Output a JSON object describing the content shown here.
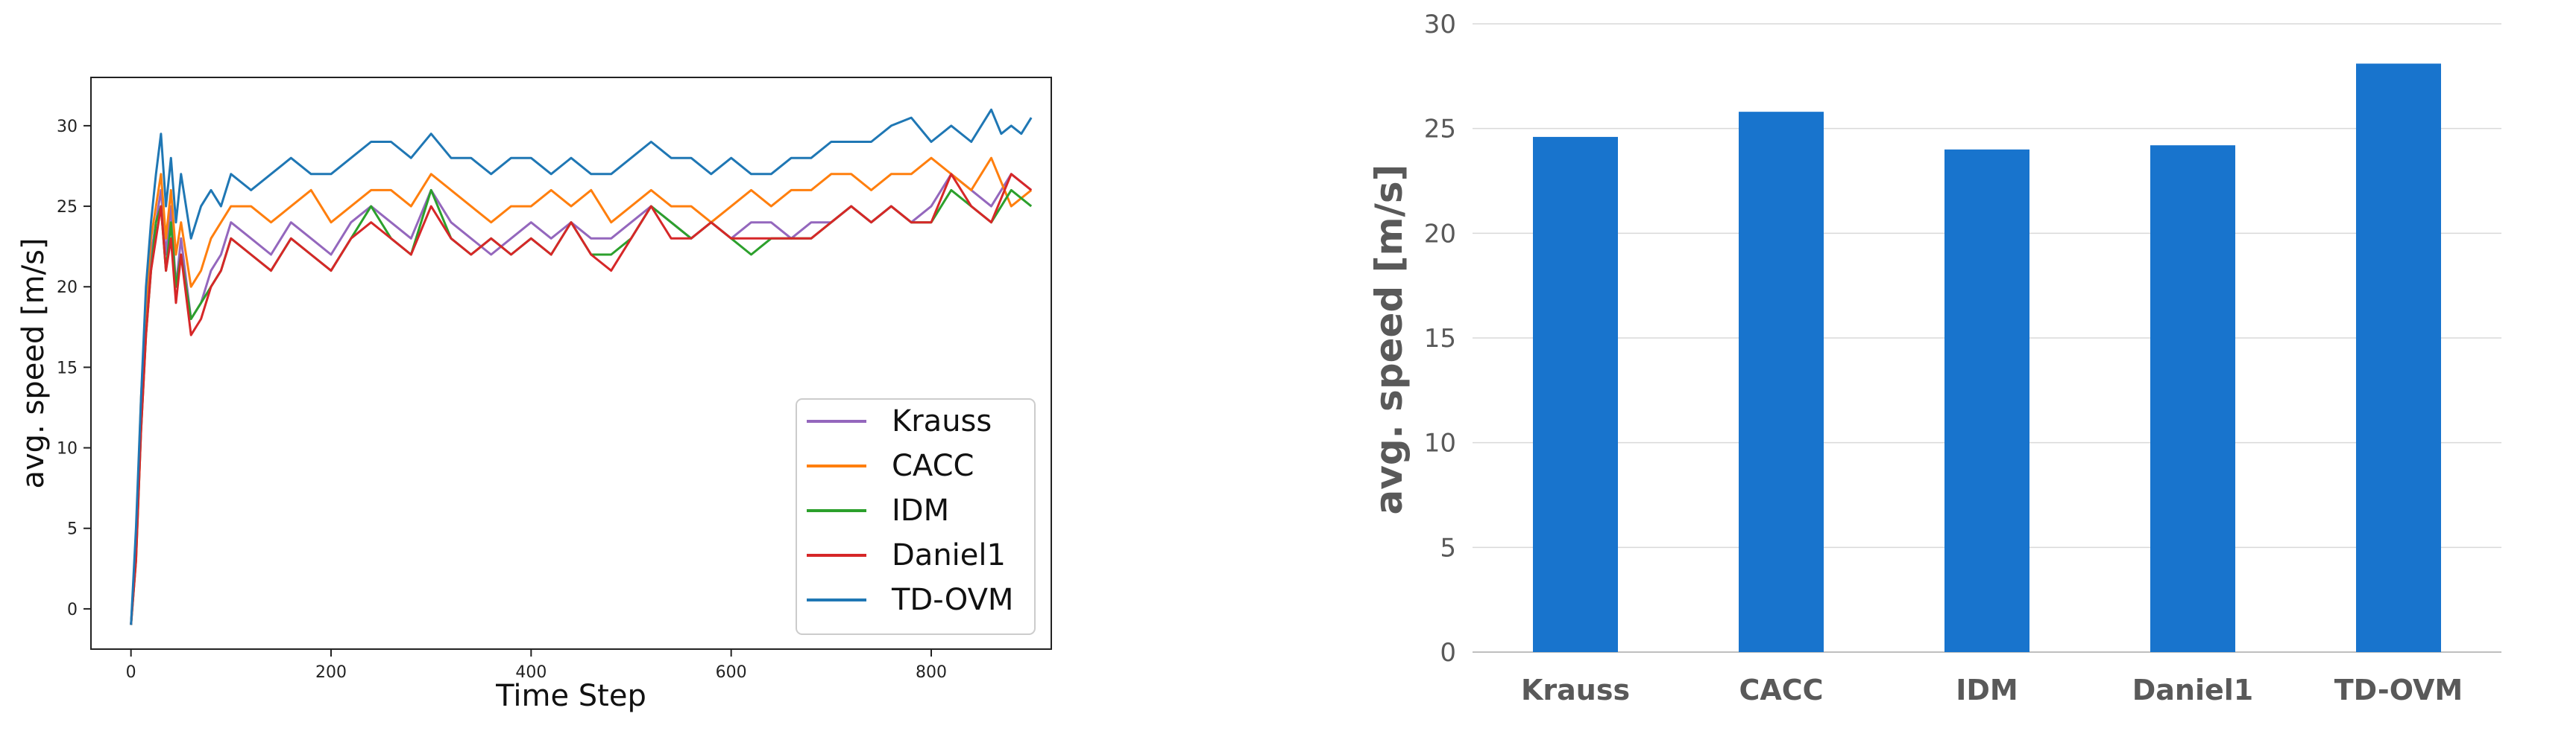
{
  "chart_data": [
    {
      "type": "line",
      "xlabel": "Time Step",
      "ylabel": "avg. speed [m/s]",
      "xlim": [
        -40,
        920
      ],
      "ylim": [
        -2.5,
        33
      ],
      "xticks": [
        0,
        200,
        400,
        600,
        800
      ],
      "yticks": [
        0,
        5,
        10,
        15,
        20,
        25,
        30
      ],
      "grid": false,
      "legend": "bottom-right",
      "series": [
        {
          "name": "Krauss",
          "color": "#9467bd",
          "x": [
            0,
            5,
            10,
            15,
            20,
            25,
            30,
            35,
            40,
            45,
            50,
            60,
            70,
            80,
            90,
            100,
            120,
            140,
            160,
            180,
            200,
            220,
            240,
            260,
            280,
            300,
            320,
            340,
            360,
            380,
            400,
            420,
            440,
            460,
            480,
            500,
            520,
            540,
            560,
            580,
            600,
            620,
            640,
            660,
            680,
            700,
            720,
            740,
            760,
            780,
            800,
            820,
            840,
            860,
            880,
            900
          ],
          "y": [
            -1,
            4,
            12,
            18,
            22,
            24,
            26,
            22,
            25,
            20,
            23,
            18,
            19,
            21,
            22,
            24,
            23,
            22,
            24,
            23,
            22,
            24,
            25,
            24,
            23,
            26,
            24,
            23,
            22,
            23,
            24,
            23,
            24,
            23,
            23,
            24,
            25,
            24,
            23,
            24,
            23,
            24,
            24,
            23,
            24,
            24,
            25,
            24,
            25,
            24,
            25,
            27,
            26,
            25,
            27,
            26
          ]
        },
        {
          "name": "CACC",
          "color": "#ff7f0e",
          "x": [
            0,
            5,
            10,
            15,
            20,
            25,
            30,
            35,
            40,
            45,
            50,
            60,
            70,
            80,
            90,
            100,
            120,
            140,
            160,
            180,
            200,
            220,
            240,
            260,
            280,
            300,
            320,
            340,
            360,
            380,
            400,
            420,
            440,
            460,
            480,
            500,
            520,
            540,
            560,
            580,
            600,
            620,
            640,
            660,
            680,
            700,
            720,
            740,
            760,
            780,
            800,
            820,
            840,
            860,
            880,
            900
          ],
          "y": [
            -1,
            4,
            13,
            19,
            23,
            25,
            27,
            23,
            26,
            22,
            24,
            20,
            21,
            23,
            24,
            25,
            25,
            24,
            25,
            26,
            24,
            25,
            26,
            26,
            25,
            27,
            26,
            25,
            24,
            25,
            25,
            26,
            25,
            26,
            24,
            25,
            26,
            25,
            25,
            24,
            25,
            26,
            25,
            26,
            26,
            27,
            27,
            26,
            27,
            27,
            28,
            27,
            26,
            28,
            25,
            26
          ]
        },
        {
          "name": "IDM",
          "color": "#2ca02c",
          "x": [
            0,
            5,
            10,
            15,
            20,
            25,
            30,
            35,
            40,
            45,
            50,
            60,
            70,
            80,
            90,
            100,
            120,
            140,
            160,
            180,
            200,
            220,
            240,
            260,
            280,
            300,
            320,
            340,
            360,
            380,
            400,
            420,
            440,
            460,
            480,
            500,
            520,
            540,
            560,
            580,
            600,
            620,
            640,
            660,
            680,
            700,
            720,
            740,
            760,
            780,
            800,
            820,
            840,
            860,
            880,
            900
          ],
          "y": [
            -1,
            3,
            11,
            17,
            21,
            24,
            25,
            21,
            24,
            20,
            22,
            18,
            19,
            20,
            21,
            23,
            22,
            21,
            23,
            22,
            21,
            23,
            25,
            23,
            22,
            26,
            23,
            22,
            23,
            22,
            23,
            22,
            24,
            22,
            22,
            23,
            25,
            24,
            23,
            24,
            23,
            22,
            23,
            23,
            23,
            24,
            25,
            24,
            25,
            24,
            24,
            26,
            25,
            24,
            26,
            25
          ]
        },
        {
          "name": "Daniel1",
          "color": "#d62728",
          "x": [
            0,
            5,
            10,
            15,
            20,
            25,
            30,
            35,
            40,
            45,
            50,
            60,
            70,
            80,
            90,
            100,
            120,
            140,
            160,
            180,
            200,
            220,
            240,
            260,
            280,
            300,
            320,
            340,
            360,
            380,
            400,
            420,
            440,
            460,
            480,
            500,
            520,
            540,
            560,
            580,
            600,
            620,
            640,
            660,
            680,
            700,
            720,
            740,
            760,
            780,
            800,
            820,
            840,
            860,
            880,
            900
          ],
          "y": [
            -1,
            3,
            11,
            17,
            21,
            23,
            25,
            21,
            23,
            19,
            22,
            17,
            18,
            20,
            21,
            23,
            22,
            21,
            23,
            22,
            21,
            23,
            24,
            23,
            22,
            25,
            23,
            22,
            23,
            22,
            23,
            22,
            24,
            22,
            21,
            23,
            25,
            23,
            23,
            24,
            23,
            23,
            23,
            23,
            23,
            24,
            25,
            24,
            25,
            24,
            24,
            27,
            25,
            24,
            27,
            26
          ]
        },
        {
          "name": "TD-OVM",
          "color": "#1f77b4",
          "x": [
            0,
            5,
            10,
            15,
            20,
            25,
            30,
            35,
            40,
            45,
            50,
            60,
            70,
            80,
            90,
            100,
            120,
            140,
            160,
            180,
            200,
            220,
            240,
            260,
            280,
            300,
            320,
            340,
            360,
            380,
            400,
            420,
            440,
            460,
            480,
            500,
            520,
            540,
            560,
            580,
            600,
            620,
            640,
            660,
            680,
            700,
            720,
            740,
            760,
            780,
            800,
            820,
            840,
            860,
            870,
            880,
            890,
            900
          ],
          "y": [
            -1,
            5,
            13,
            20,
            24,
            27,
            29.5,
            25,
            28,
            24,
            27,
            23,
            25,
            26,
            25,
            27,
            26,
            27,
            28,
            27,
            27,
            28,
            29,
            29,
            28,
            29.5,
            28,
            28,
            27,
            28,
            28,
            27,
            28,
            27,
            27,
            28,
            29,
            28,
            28,
            27,
            28,
            27,
            27,
            28,
            28,
            29,
            29,
            29,
            30,
            30.5,
            29,
            30,
            29,
            31,
            29.5,
            30,
            29.5,
            30.5
          ]
        }
      ]
    },
    {
      "type": "bar",
      "categories": [
        "Krauss",
        "CACC",
        "IDM",
        "Daniel1",
        "TD-OVM"
      ],
      "values": [
        24.6,
        25.8,
        24.0,
        24.2,
        28.1
      ],
      "color": "#1874cd",
      "ylabel": "avg. speed [m/s]",
      "xlabel": "",
      "ylim": [
        0,
        30
      ],
      "yticks": [
        0,
        5,
        10,
        15,
        20,
        25,
        30
      ],
      "grid": true
    }
  ]
}
